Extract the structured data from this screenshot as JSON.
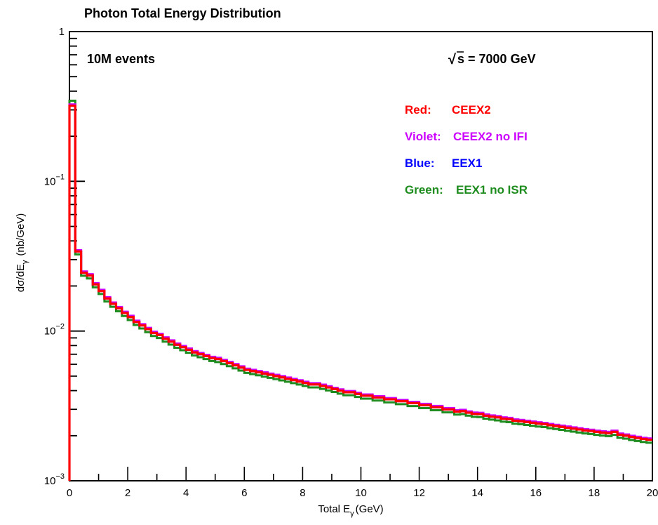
{
  "chart_data": {
    "type": "line",
    "title": "Photon Total Energy Distribution",
    "xlabel": "Total E",
    "xlabel_sub": "γ",
    "xlabel_unit": "(GeV)",
    "ylabel": "dσ/dE",
    "ylabel_sub": "γ",
    "ylabel_unit": "(nb/GeV)",
    "xlim": [
      0,
      20
    ],
    "ylim": [
      0.001,
      1
    ],
    "yscale": "log",
    "grid": false,
    "x_ticks": [
      "0",
      "2",
      "4",
      "6",
      "8",
      "10",
      "12",
      "14",
      "16",
      "18",
      "20"
    ],
    "y_ticks": [
      {
        "value": 0.001,
        "base": "10",
        "exp": "−3"
      },
      {
        "value": 0.01,
        "base": "10",
        "exp": "−2"
      },
      {
        "value": 0.1,
        "base": "10",
        "exp": "−1"
      },
      {
        "value": 1,
        "base": "1",
        "exp": ""
      }
    ],
    "annotations": {
      "events": "10M events",
      "energy": "s = 7000 GeV",
      "sqrt_symbol": "√"
    },
    "legend": [
      {
        "label": "Red:",
        "value": "CEEX2",
        "color": "#ff0000"
      },
      {
        "label": "Violet:",
        "value": "CEEX2 no IFI",
        "color": "#cc00ff"
      },
      {
        "label": "Blue:",
        "value": "EEX1",
        "color": "#0000ff"
      },
      {
        "label": "Green:",
        "value": "EEX1 no ISR",
        "color": "#1e8c1e"
      }
    ],
    "bin_width": 0.2,
    "series": [
      {
        "name": "Red: CEEX2",
        "color": "#ff0000"
      },
      {
        "name": "Violet: CEEX2 no IFI",
        "color": "#cc00ff"
      },
      {
        "name": "Blue: EEX1",
        "color": "#0000ff"
      },
      {
        "name": "Green: EEX1 no ISR",
        "color": "#1e8c1e"
      }
    ],
    "x": [
      0.1,
      0.3,
      0.5,
      0.7,
      0.9,
      1.1,
      1.3,
      1.5,
      1.7,
      1.9,
      2.1,
      2.3,
      2.5,
      2.7,
      2.9,
      3.1,
      3.3,
      3.5,
      3.7,
      3.9,
      4.1,
      4.3,
      4.5,
      4.7,
      4.9,
      5.1,
      5.3,
      5.5,
      5.7,
      5.9,
      6.1,
      6.3,
      6.5,
      6.7,
      6.9,
      7.1,
      7.3,
      7.5,
      7.7,
      7.9,
      8.1,
      8.3,
      8.5,
      8.7,
      8.9,
      9.1,
      9.3,
      9.5,
      9.7,
      9.9,
      10.1,
      10.3,
      10.5,
      10.7,
      10.9,
      11.1,
      11.3,
      11.5,
      11.7,
      11.9,
      12.1,
      12.3,
      12.5,
      12.7,
      12.9,
      13.1,
      13.3,
      13.5,
      13.7,
      13.9,
      14.1,
      14.3,
      14.5,
      14.7,
      14.9,
      15.1,
      15.3,
      15.5,
      15.7,
      15.9,
      16.1,
      16.3,
      16.5,
      16.7,
      16.9,
      17.1,
      17.3,
      17.5,
      17.7,
      17.9,
      18.1,
      18.3,
      18.5,
      18.7,
      18.9,
      19.1,
      19.3,
      19.5,
      19.7,
      19.9
    ],
    "y": [
      0.32,
      0.034,
      0.0245,
      0.0235,
      0.0205,
      0.0185,
      0.0165,
      0.0152,
      0.0142,
      0.0132,
      0.0124,
      0.0115,
      0.0109,
      0.0103,
      0.0097,
      0.0094,
      0.0089,
      0.0085,
      0.0081,
      0.0078,
      0.0075,
      0.0072,
      0.007,
      0.0068,
      0.0066,
      0.0065,
      0.0063,
      0.0061,
      0.0059,
      0.0057,
      0.0055,
      0.0054,
      0.0053,
      0.0052,
      0.0051,
      0.005,
      0.0049,
      0.0048,
      0.0047,
      0.0046,
      0.0045,
      0.0044,
      0.0044,
      0.0043,
      0.0042,
      0.0041,
      0.004,
      0.0039,
      0.0039,
      0.0038,
      0.0037,
      0.0037,
      0.0036,
      0.0036,
      0.0035,
      0.0035,
      0.0034,
      0.0034,
      0.0033,
      0.0033,
      0.0032,
      0.0032,
      0.0031,
      0.0031,
      0.003,
      0.003,
      0.0029,
      0.00292,
      0.00285,
      0.0028,
      0.00279,
      0.00272,
      0.00268,
      0.00265,
      0.0026,
      0.00258,
      0.00252,
      0.0025,
      0.00247,
      0.00244,
      0.00241,
      0.00239,
      0.00235,
      0.00232,
      0.00229,
      0.00226,
      0.00223,
      0.0022,
      0.00217,
      0.00215,
      0.00212,
      0.0021,
      0.00208,
      0.00212,
      0.00203,
      0.002,
      0.00196,
      0.00193,
      0.0019,
      0.00188
    ]
  }
}
